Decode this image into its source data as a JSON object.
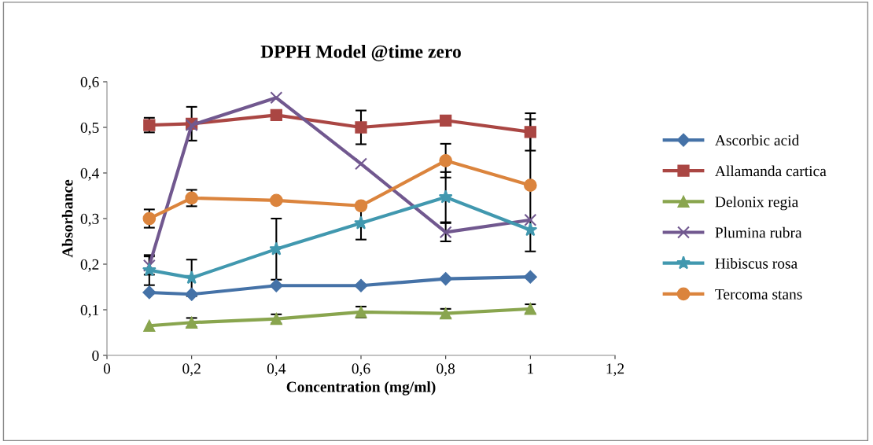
{
  "chart_data": {
    "type": "line",
    "title": "DPPH Model @time zero",
    "xlabel": "Concentration (mg/ml)",
    "ylabel": "Absorbance",
    "x": [
      0.1,
      0.2,
      0.4,
      0.6,
      0.8,
      1
    ],
    "xlim": [
      0,
      1.2
    ],
    "ylim": [
      0,
      0.6
    ],
    "xticks": [
      0,
      {
        "value": 0.2,
        "label": "0,2"
      },
      {
        "value": 0.4,
        "label": "0,4"
      },
      {
        "value": 0.6,
        "label": "0,6"
      },
      {
        "value": 0.8,
        "label": "0,8"
      },
      1,
      {
        "value": 1.2,
        "label": "1,2"
      }
    ],
    "yticks": [
      0,
      {
        "value": 0.1,
        "label": "0,1"
      },
      {
        "value": 0.2,
        "label": "0,2"
      },
      {
        "value": 0.3,
        "label": "0,3"
      },
      {
        "value": 0.4,
        "label": "0,4"
      },
      {
        "value": 0.5,
        "label": "0,5"
      },
      {
        "value": 0.6,
        "label": "0,6"
      }
    ],
    "grid": false,
    "legend": "right",
    "series": [
      {
        "name": "Ascorbic acid",
        "color": "#4572a7",
        "marker": "diamond",
        "values": [
          0.138,
          0.134,
          0.153,
          0.153,
          0.168,
          0.172
        ],
        "errors": [
          null,
          null,
          null,
          null,
          null,
          null
        ]
      },
      {
        "name": "Allamanda cartica",
        "color": "#aa4643",
        "marker": "square",
        "values": [
          0.505,
          0.508,
          0.527,
          0.5,
          0.515,
          0.49
        ],
        "errors": [
          0.016,
          0.037,
          null,
          0.037,
          null,
          0.041
        ]
      },
      {
        "name": "Delonix regia",
        "color": "#89a54e",
        "marker": "triangle",
        "values": [
          0.065,
          0.072,
          0.08,
          0.095,
          0.092,
          0.102
        ],
        "errors": [
          null,
          0.01,
          0.01,
          0.012,
          0.01,
          0.01
        ]
      },
      {
        "name": "Plumina rubra",
        "color": "#71588f",
        "marker": "cross",
        "values": [
          0.197,
          0.505,
          0.565,
          0.42,
          0.27,
          0.297
        ],
        "errors": [
          0.02,
          null,
          null,
          null,
          0.02,
          null
        ]
      },
      {
        "name": "Hibiscus rosa",
        "color": "#4198af",
        "marker": "star",
        "values": [
          0.187,
          0.17,
          0.233,
          0.29,
          0.347,
          0.275
        ],
        "errors": [
          0.033,
          0.04,
          0.067,
          0.036,
          0.055,
          null
        ]
      },
      {
        "name": "Tercoma stans",
        "color": "#db843d",
        "marker": "circle",
        "values": [
          0.3,
          0.345,
          0.34,
          0.328,
          0.427,
          0.373
        ],
        "errors": [
          0.02,
          0.018,
          null,
          null,
          0.037,
          0.145
        ]
      }
    ]
  }
}
